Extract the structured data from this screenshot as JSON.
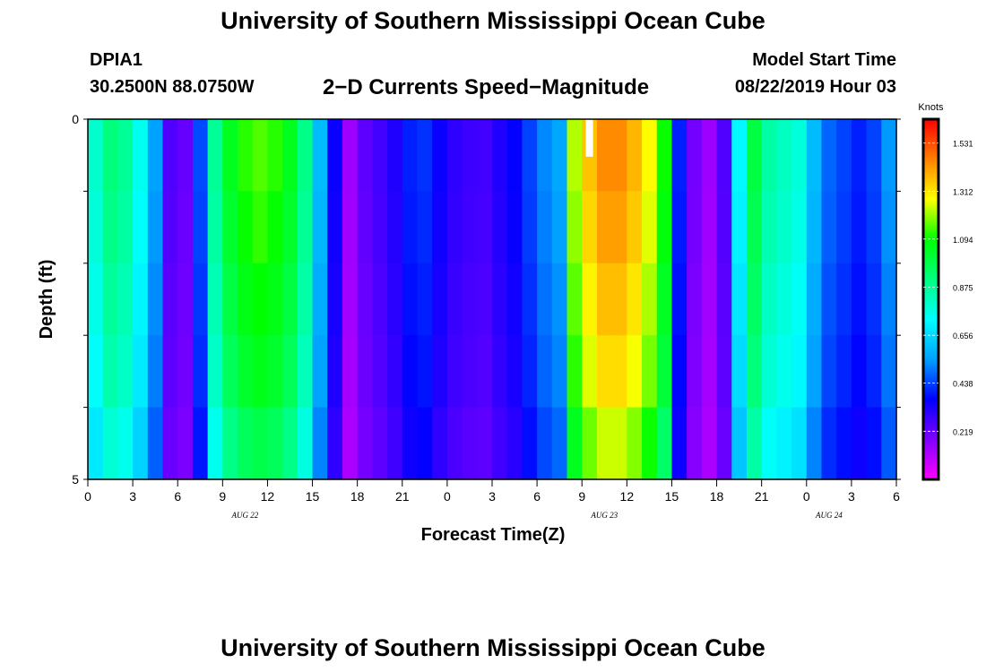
{
  "header": {
    "title": "University of Southern Mississippi Ocean Cube",
    "station_id": "DPIA1",
    "coords": "30.2500N 88.0750W",
    "subtitle": "2−D Currents Speed−Magnitude",
    "start_label": "Model Start Time",
    "start_value": "08/22/2019 Hour 03"
  },
  "footer": {
    "title": "University of Southern Mississippi Ocean Cube"
  },
  "chart_data": {
    "type": "heatmap",
    "title": "2-D Currents Speed-Magnitude",
    "xlabel": "Forecast Time(Z)",
    "ylabel": "Depth (ft)",
    "y_tick_labels": [
      "0",
      "5"
    ],
    "ylim": [
      0,
      5
    ],
    "x_tick_labels": [
      "0",
      "3",
      "6",
      "9",
      "12",
      "15",
      "18",
      "21",
      "0",
      "3",
      "6",
      "9",
      "12",
      "15",
      "18",
      "21",
      "0",
      "3",
      "6"
    ],
    "date_labels": [
      {
        "label": "AUG  22",
        "hour_index": 10.5
      },
      {
        "label": "AUG  23",
        "hour_index": 34.5
      },
      {
        "label": "AUG  24",
        "hour_index": 49.5
      }
    ],
    "x_hours": 54,
    "depth_rows": 5,
    "colorbar": {
      "label": "Knots",
      "ticks": [
        "1.531",
        "1.312",
        "1.094",
        "0.875",
        "0.656",
        "0.438",
        "0.219"
      ],
      "tick_values": [
        1.531,
        1.312,
        1.094,
        0.875,
        0.656,
        0.438,
        0.219
      ],
      "range": [
        0,
        1.64
      ],
      "colors": [
        "#ff00ff",
        "#8000ff",
        "#0000ff",
        "#00a0ff",
        "#00ffff",
        "#00ff80",
        "#00ff00",
        "#ffff00",
        "#ff8000",
        "#ff0000"
      ]
    },
    "missing_cells": [
      {
        "col": 33,
        "row": 0
      }
    ],
    "speed_profile_knots": [
      0.8,
      0.92,
      0.88,
      0.75,
      0.55,
      0.25,
      0.22,
      0.45,
      0.88,
      1.05,
      1.12,
      1.15,
      1.12,
      1.05,
      0.9,
      0.6,
      0.35,
      0.14,
      0.23,
      0.27,
      0.32,
      0.4,
      0.42,
      0.35,
      0.3,
      0.28,
      0.27,
      0.32,
      0.36,
      0.44,
      0.52,
      0.56,
      1.22,
      1.36,
      1.44,
      1.44,
      1.38,
      1.28,
      1.1,
      0.4,
      0.2,
      0.14,
      0.25,
      0.72,
      1.0,
      0.86,
      0.82,
      0.78,
      0.6,
      0.48,
      0.44,
      0.4,
      0.44,
      0.54
    ],
    "row_scale": [
      1.0,
      0.98,
      0.95,
      0.92,
      0.86
    ]
  }
}
